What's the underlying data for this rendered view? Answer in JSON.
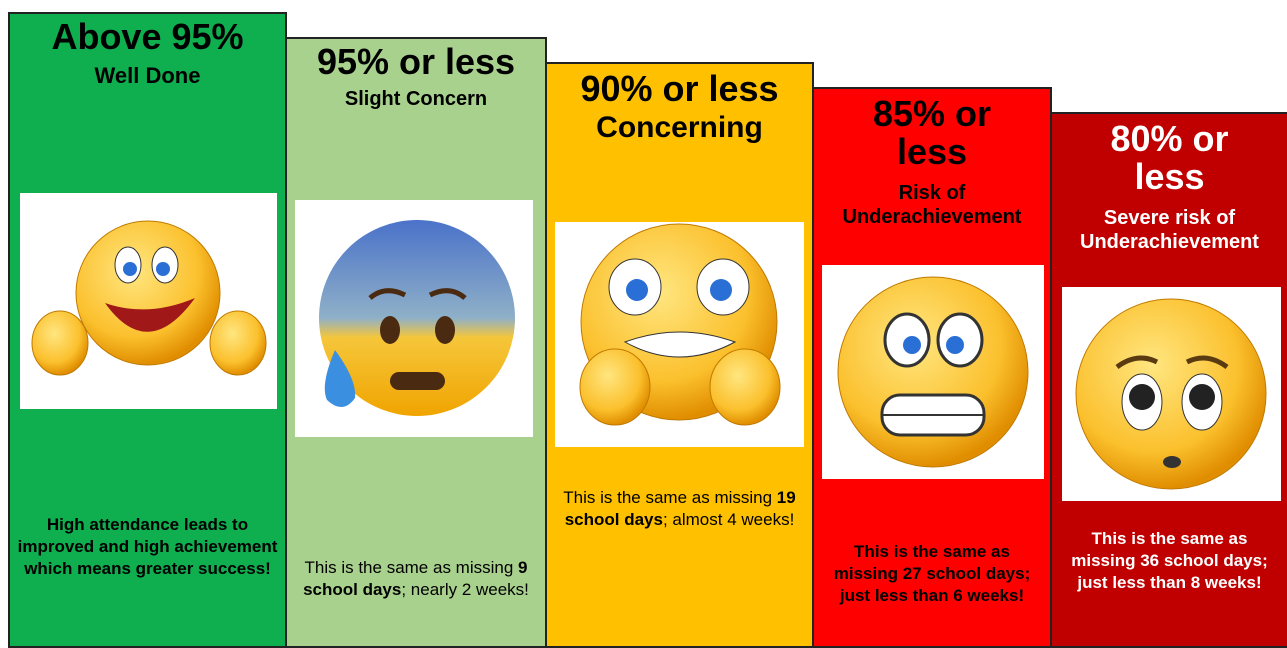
{
  "columns": [
    {
      "heading": "Above 95%",
      "subheading": "Well Done",
      "description": [
        "High attendance leads to improved and high achievement which means greater success!"
      ]
    },
    {
      "heading": "95% or less",
      "subheading": "Slight Concern",
      "description": [
        "This is the same as missing ",
        "9 school days",
        "; nearly 2 weeks!"
      ]
    },
    {
      "heading": "90% or less",
      "subheading": "Concerning",
      "description": [
        "This is the same as missing ",
        "19 school days",
        "; almost 4 weeks!"
      ]
    },
    {
      "heading": "85% or less",
      "subheading": "Risk of Underachievement",
      "description": [
        "This is the same as missing ",
        "27 school days",
        "; just less than 6 weeks!"
      ]
    },
    {
      "heading": "80% or less",
      "subheading": "Severe risk of Underachievement",
      "description": [
        "This is the same as missing ",
        "36 school days",
        "; just less than 8 weeks!"
      ]
    }
  ]
}
